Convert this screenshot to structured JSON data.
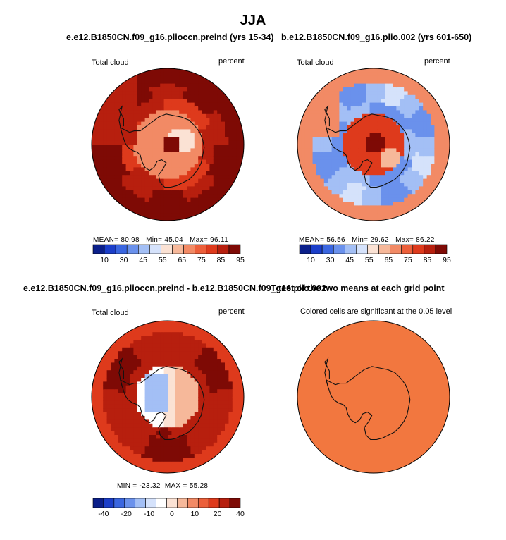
{
  "season": "JJA",
  "colors": {
    "sequential": [
      "#0b1f8a",
      "#1b3ec9",
      "#3a66e0",
      "#6a91ec",
      "#a3bff5",
      "#d5e2fb",
      "#fbe2d4",
      "#f6b89a",
      "#f28a65",
      "#ec5f3a",
      "#de3a1c",
      "#b71f0e",
      "#7e0a05"
    ],
    "diverging": [
      "#0b1f8a",
      "#1b3ec9",
      "#3a66e0",
      "#6a91ec",
      "#a3bff5",
      "#d5e2fb",
      "#ffffff",
      "#fbe2d4",
      "#f6b89a",
      "#f28a65",
      "#ec5f3a",
      "#de3a1c",
      "#b71f0e",
      "#7e0a05"
    ],
    "significance": "#f2773f",
    "coast": "#111111"
  },
  "chart_data": [
    {
      "type": "heatmap",
      "projection": "south-polar-stereographic",
      "title": "e.e12.B1850CN.f09_g16.plioccn.preind (yrs 15-34)",
      "left_label": "Total cloud",
      "right_label": "percent",
      "stats": {
        "mean_label": "MEAN=",
        "mean": "80.98",
        "min_label": "Min=",
        "min": "45.04",
        "max_label": "Max=",
        "max": "96.11"
      },
      "colorbar": {
        "levels": [
          5,
          10,
          20,
          30,
          40,
          45,
          50,
          55,
          60,
          65,
          70,
          75,
          80,
          85,
          90,
          95
        ],
        "tick_labels": [
          "10",
          "30",
          "45",
          "55",
          "65",
          "75",
          "85",
          "95"
        ],
        "palette": "sequential"
      },
      "field": {
        "ocean": 84,
        "coast": 80,
        "shelf": 74,
        "interior": 60,
        "east_plateau": 54,
        "center_high": 82,
        "peninsula": 76
      }
    },
    {
      "type": "heatmap",
      "projection": "south-polar-stereographic",
      "title": "b.e12.B1850CN.f09_g16.plio.002 (yrs 601-650)",
      "left_label": "Total cloud",
      "right_label": "percent",
      "stats": {
        "mean_label": "MEAN=",
        "mean": "56.56",
        "min_label": "Min=",
        "min": "29.62",
        "max_label": "Max=",
        "max": "86.22"
      },
      "colorbar": {
        "levels": [
          5,
          10,
          20,
          30,
          40,
          45,
          50,
          55,
          60,
          65,
          70,
          75,
          80,
          85,
          90,
          95
        ],
        "tick_labels": [
          "10",
          "30",
          "45",
          "55",
          "65",
          "75",
          "85",
          "95"
        ],
        "palette": "sequential"
      },
      "field": {
        "ocean": 64,
        "ring": 42,
        "shelf": 38,
        "interior": 74,
        "east_plateau": 56,
        "center_high": 80,
        "peninsula": 60
      }
    },
    {
      "type": "heatmap",
      "projection": "south-polar-stereographic",
      "title": "e.e12.B1850CN.f09_g16.plioccn.preind - b.e12.B1850CN.f09_g16.plio.002",
      "left_label": "Total cloud",
      "right_label": "percent",
      "stats": {
        "mean_label": "",
        "mean": "",
        "min_label": "MIN =",
        "min": "-23.32",
        "max_label": "MAX =",
        "max": "55.28"
      },
      "colorbar": {
        "levels": [
          -50,
          -40,
          -30,
          -20,
          -15,
          -10,
          -5,
          0,
          5,
          10,
          15,
          20,
          30,
          40,
          50
        ],
        "tick_labels": [
          "-40",
          "-20",
          "-10",
          "0",
          "10",
          "20",
          "40"
        ],
        "palette": "diverging"
      },
      "field": {
        "ocean": 22,
        "ring": 38,
        "shelf": 30,
        "interior": -14,
        "east_plateau": 6,
        "center_high": 2,
        "ross_hotspot": 52
      }
    },
    {
      "type": "heatmap",
      "projection": "south-polar-stereographic",
      "title": "T-test of the two means at each grid point",
      "subtitle": "Colored cells are significant at the 0.05 level",
      "field": {
        "significant_fraction": 0.99
      }
    }
  ]
}
